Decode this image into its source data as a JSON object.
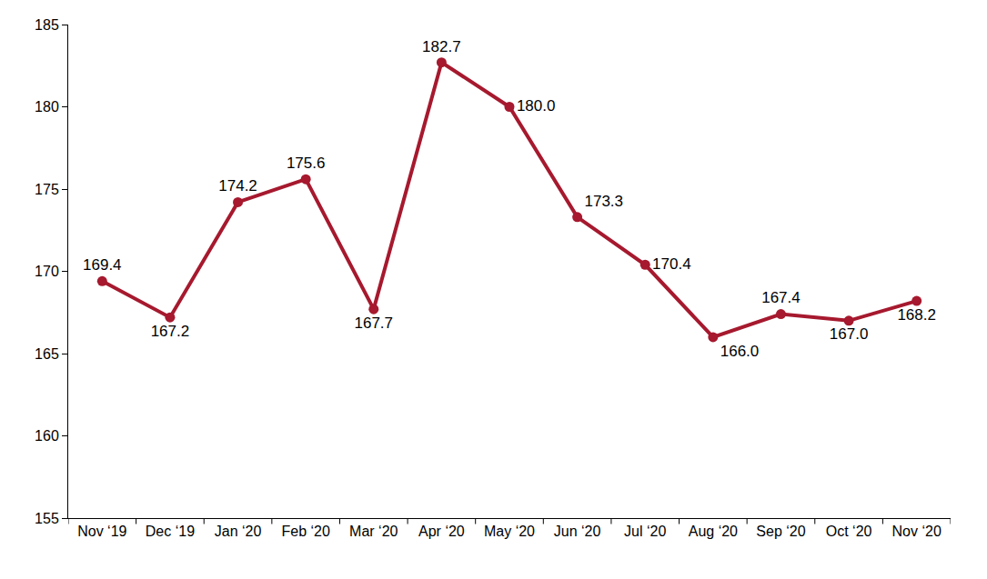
{
  "chart_data": {
    "type": "line",
    "categories": [
      "Nov ‘19",
      "Dec ‘19",
      "Jan ‘20",
      "Feb ‘20",
      "Mar ‘20",
      "Apr ‘20",
      "May ‘20",
      "Jun ‘20",
      "Jul ‘20",
      "Aug ‘20",
      "Sep ‘20",
      "Oct ‘20",
      "Nov ‘20"
    ],
    "values": [
      169.4,
      167.2,
      174.2,
      175.6,
      167.7,
      182.7,
      180.0,
      173.3,
      170.4,
      166.0,
      167.4,
      167.0,
      168.2
    ],
    "value_labels": [
      "169.4",
      "167.2",
      "174.2",
      "175.6",
      "167.7",
      "182.7",
      "180.0",
      "173.3",
      "170.4",
      "166.0",
      "167.4",
      "167.0",
      "168.2"
    ],
    "color": "#a6192e",
    "marker": "circle",
    "ylim": [
      155,
      185
    ],
    "yticks": [
      155,
      160,
      165,
      170,
      175,
      180,
      185
    ],
    "grid": false,
    "data_labels": true
  }
}
